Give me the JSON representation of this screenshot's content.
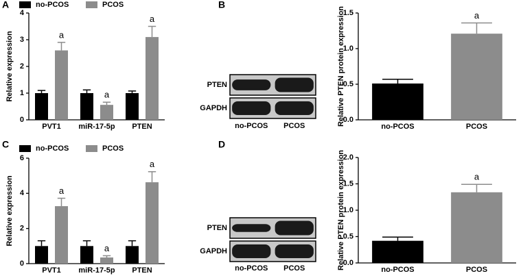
{
  "panels": [
    "A",
    "B",
    "C",
    "D"
  ],
  "blots": [
    {
      "rows": [
        "PTEN",
        "GAPDH"
      ],
      "lanes": [
        "no-PCOS",
        "PCOS"
      ]
    },
    {
      "rows": [
        "PTEN",
        "GAPDH"
      ],
      "lanes": [
        "no-PCOS",
        "PCOS"
      ]
    }
  ],
  "chart_data": [
    {
      "type": "grouped_bar",
      "ylabel": "Relative expression",
      "categories": [
        "PVT1",
        "miR-17-5p",
        "PTEN"
      ],
      "series": [
        {
          "name": "no-PCOS",
          "color": "#000000",
          "values": [
            1.0,
            1.0,
            1.0
          ],
          "errors": [
            0.1,
            0.12,
            0.08
          ]
        },
        {
          "name": "PCOS",
          "color": "#8c8c8c",
          "values": [
            2.6,
            0.56,
            3.1
          ],
          "errors": [
            0.3,
            0.1,
            0.4
          ],
          "significance": [
            "a",
            "a",
            "a"
          ]
        }
      ],
      "ylim": [
        0,
        4
      ],
      "yticks": [
        0,
        1,
        2,
        3,
        4
      ],
      "legend": "top"
    },
    {
      "type": "bar",
      "ylabel": "Relative PTEN protein expression",
      "categories": [
        "no-PCOS",
        "PCOS"
      ],
      "values": [
        0.51,
        1.21
      ],
      "errors": [
        0.06,
        0.15
      ],
      "colors": [
        "#000000",
        "#8c8c8c"
      ],
      "significance": [
        null,
        "a"
      ],
      "ylim": [
        0,
        1.5
      ],
      "yticks": [
        {
          "value": 0,
          "label": "0.0"
        },
        {
          "value": 0.5,
          "label": "0.5"
        },
        {
          "value": 1,
          "label": "1.0"
        },
        {
          "value": 1.5,
          "label": "1.5"
        }
      ]
    },
    {
      "type": "grouped_bar",
      "ylabel": "Relative expression",
      "categories": [
        "PVT1",
        "miR-17-5p",
        "PTEN"
      ],
      "series": [
        {
          "name": "no-PCOS",
          "color": "#000000",
          "values": [
            1.0,
            1.0,
            1.0
          ],
          "errors": [
            0.3,
            0.3,
            0.3
          ]
        },
        {
          "name": "PCOS",
          "color": "#8c8c8c",
          "values": [
            3.27,
            0.35,
            4.63
          ],
          "errors": [
            0.45,
            0.1,
            0.6
          ],
          "significance": [
            "a",
            "a",
            "a"
          ]
        }
      ],
      "ylim": [
        0,
        6
      ],
      "yticks": [
        0,
        2,
        4,
        6
      ],
      "legend": "top"
    },
    {
      "type": "bar",
      "ylabel": "Relative PTEN protein expression",
      "categories": [
        "no-PCOS",
        "PCOS"
      ],
      "values": [
        0.42,
        1.34
      ],
      "errors": [
        0.07,
        0.15
      ],
      "colors": [
        "#000000",
        "#8c8c8c"
      ],
      "significance": [
        null,
        "a"
      ],
      "ylim": [
        0,
        2
      ],
      "yticks": [
        {
          "value": 0,
          "label": "0.0"
        },
        {
          "value": 0.5,
          "label": "0.5"
        },
        {
          "value": 1,
          "label": "1.0"
        },
        {
          "value": 1.5,
          "label": "1.5"
        },
        {
          "value": 2,
          "label": "2.0"
        }
      ]
    }
  ]
}
